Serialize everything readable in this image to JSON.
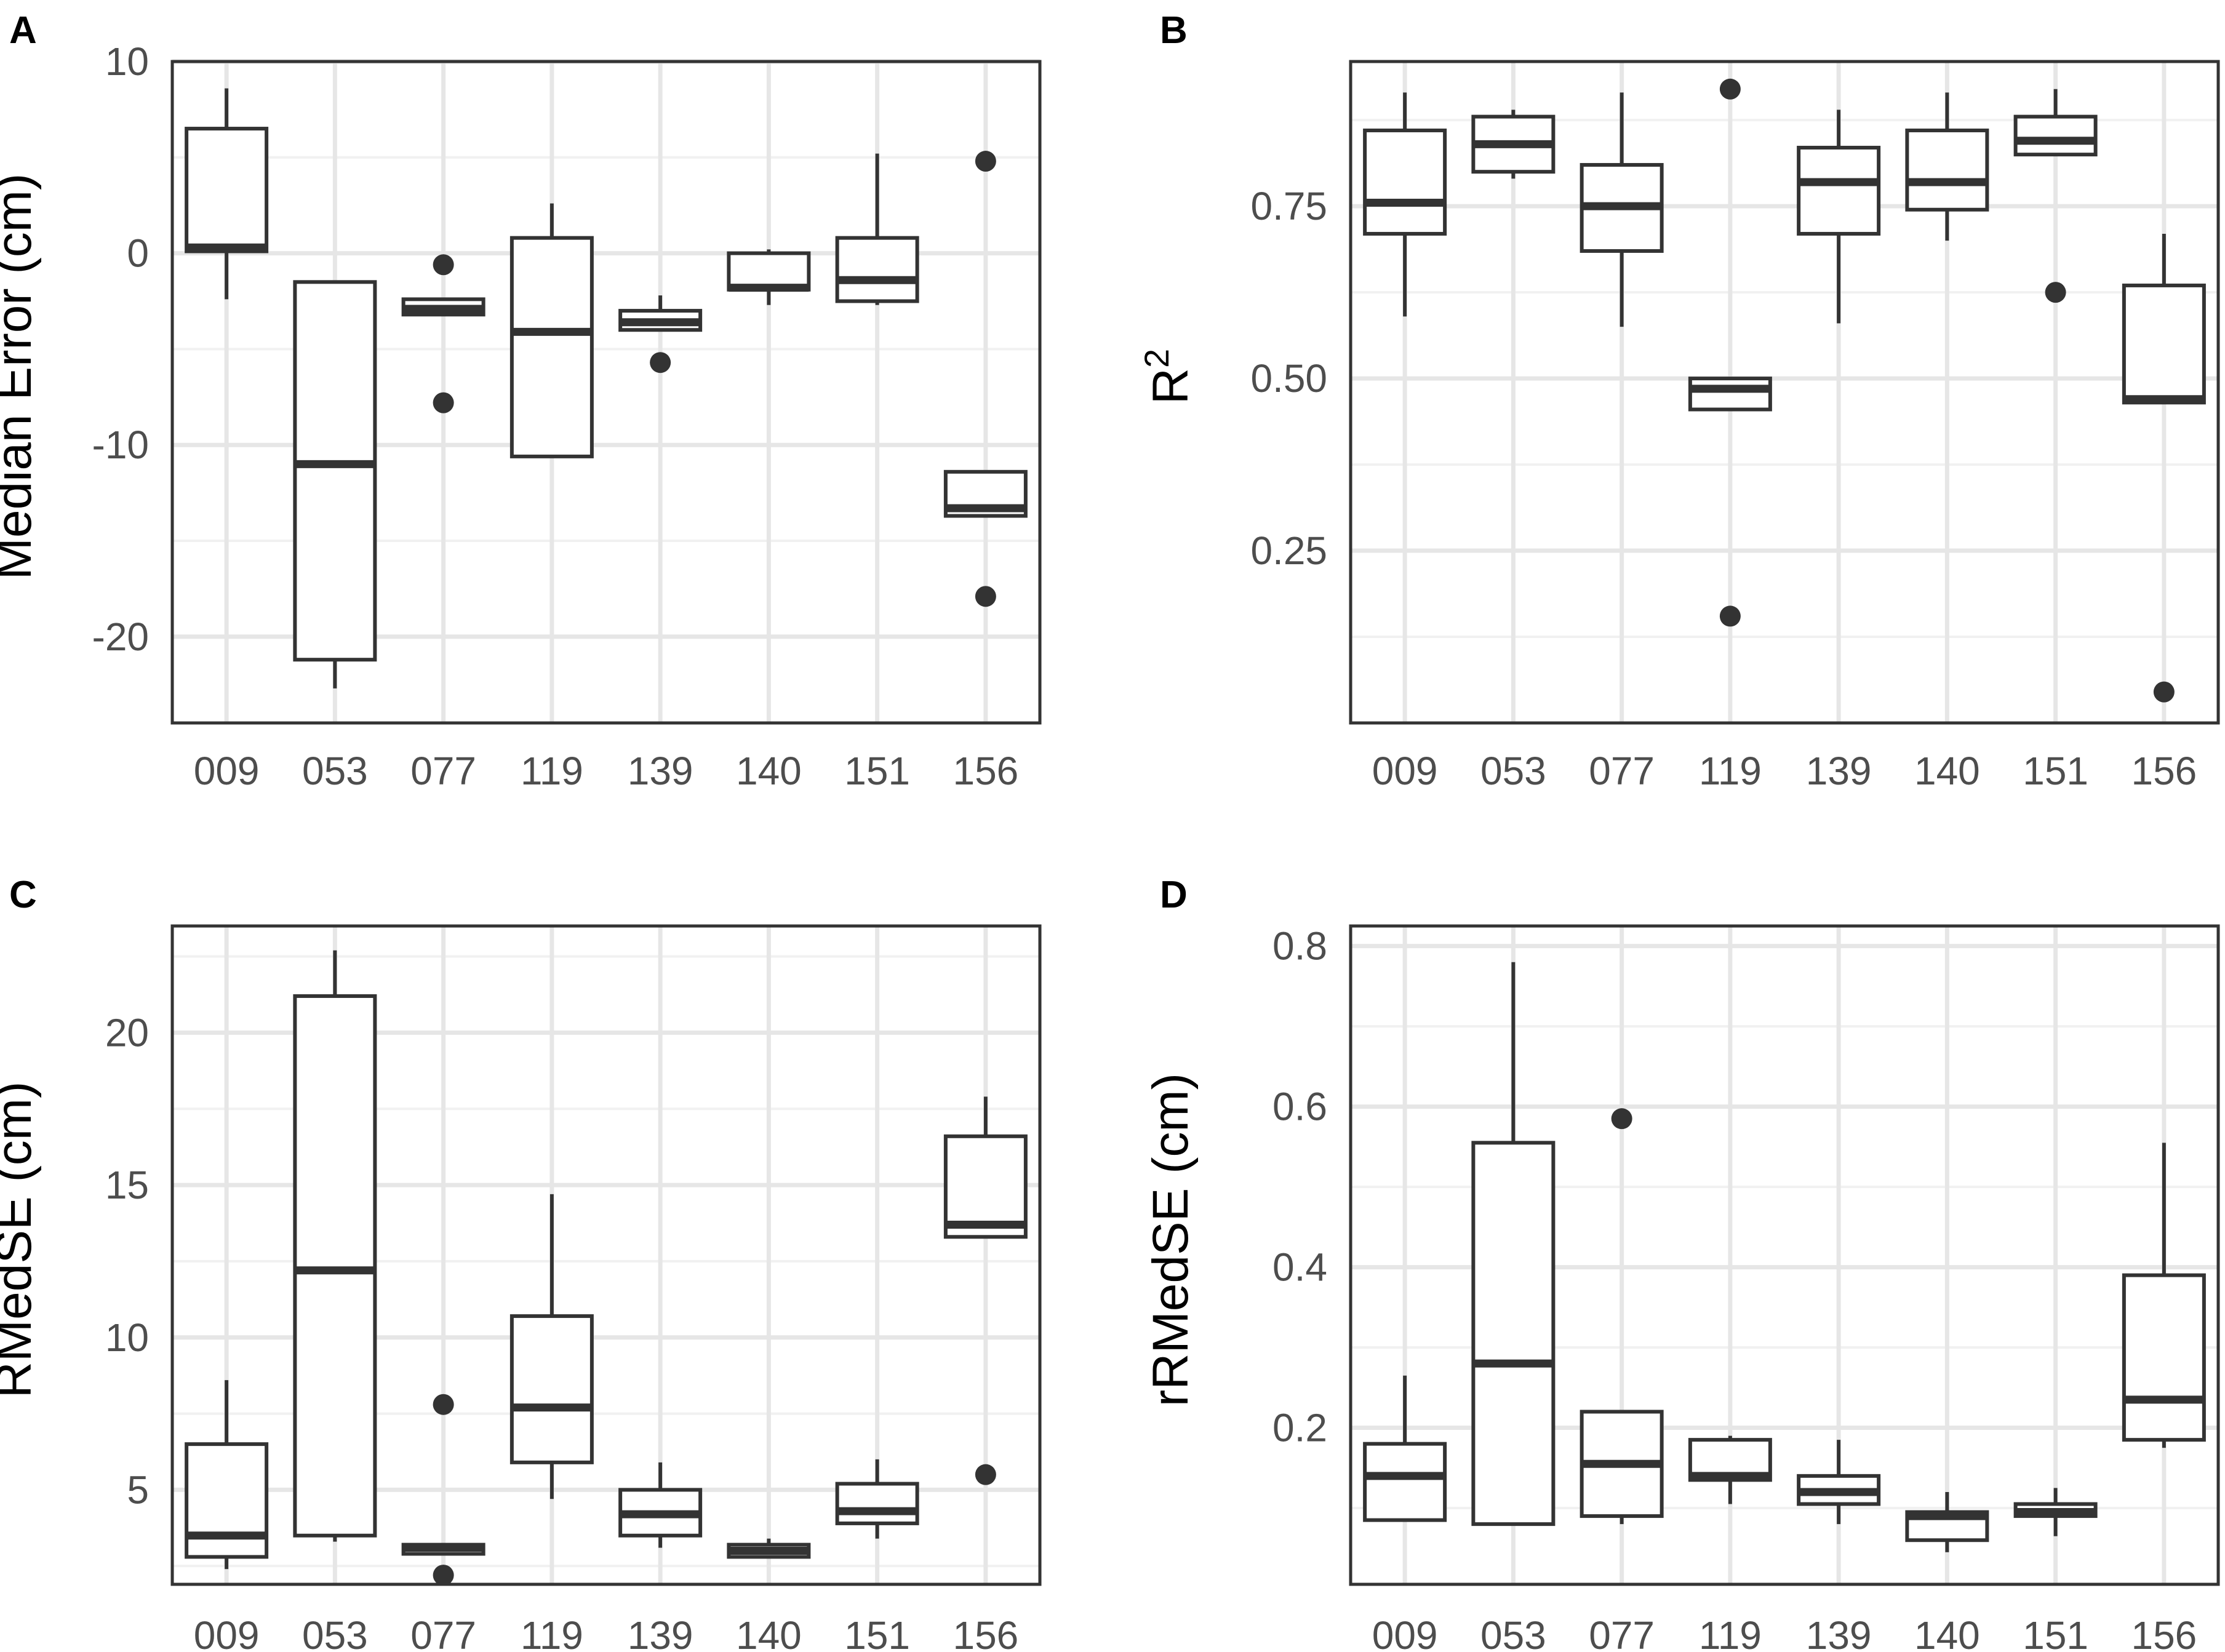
{
  "chart_data": [
    {
      "panel": "A",
      "type": "boxplot",
      "ylabel": "Median Error (cm)",
      "xlabel": "",
      "ylim": [
        -24.5,
        10
      ],
      "yticks": [
        10,
        0,
        -10,
        -20
      ],
      "yticklabels": [
        "10",
        "0",
        "-10",
        "-20"
      ],
      "categories": [
        "009",
        "053",
        "077",
        "119",
        "139",
        "140",
        "151",
        "156"
      ],
      "boxes": [
        {
          "wlo": -2.4,
          "q1": 0.1,
          "median": 0.3,
          "q3": 6.5,
          "whi": 8.6,
          "outliers": []
        },
        {
          "wlo": -22.7,
          "q1": -21.2,
          "median": -11.0,
          "q3": -1.5,
          "whi": -1.5,
          "outliers": []
        },
        {
          "wlo": -3.2,
          "q1": -3.2,
          "median": -2.9,
          "q3": -2.4,
          "whi": -2.4,
          "outliers": [
            -0.6,
            -7.8
          ]
        },
        {
          "wlo": -10.6,
          "q1": -10.6,
          "median": -4.1,
          "q3": 0.8,
          "whi": 2.6,
          "outliers": []
        },
        {
          "wlo": -4.0,
          "q1": -4.0,
          "median": -3.6,
          "q3": -3.0,
          "whi": -2.2,
          "outliers": [
            -5.7
          ]
        },
        {
          "wlo": -2.7,
          "q1": -1.9,
          "median": -1.8,
          "q3": 0.0,
          "whi": 0.2,
          "outliers": []
        },
        {
          "wlo": -2.7,
          "q1": -2.5,
          "median": -1.4,
          "q3": 0.8,
          "whi": 5.2,
          "outliers": []
        },
        {
          "wlo": -13.7,
          "q1": -13.7,
          "median": -13.3,
          "q3": -11.4,
          "whi": -11.4,
          "outliers": [
            4.8,
            -17.9
          ]
        }
      ]
    },
    {
      "panel": "B",
      "type": "boxplot",
      "ylabel": "R",
      "ylabel_sup": "2",
      "xlabel": "",
      "ylim": [
        0.0,
        0.96
      ],
      "yticks": [
        0.75,
        0.5,
        0.25
      ],
      "yticklabels": [
        "0.75",
        "0.50",
        "0.25"
      ],
      "categories": [
        "009",
        "053",
        "077",
        "119",
        "139",
        "140",
        "151",
        "156"
      ],
      "boxes": [
        {
          "wlo": 0.59,
          "q1": 0.71,
          "median": 0.755,
          "q3": 0.86,
          "whi": 0.915,
          "outliers": []
        },
        {
          "wlo": 0.79,
          "q1": 0.8,
          "median": 0.84,
          "q3": 0.88,
          "whi": 0.89,
          "outliers": []
        },
        {
          "wlo": 0.575,
          "q1": 0.685,
          "median": 0.75,
          "q3": 0.81,
          "whi": 0.915,
          "outliers": []
        },
        {
          "wlo": 0.455,
          "q1": 0.455,
          "median": 0.485,
          "q3": 0.5,
          "whi": 0.5,
          "outliers": [
            0.92,
            0.155
          ]
        },
        {
          "wlo": 0.58,
          "q1": 0.71,
          "median": 0.785,
          "q3": 0.835,
          "whi": 0.89,
          "outliers": []
        },
        {
          "wlo": 0.7,
          "q1": 0.745,
          "median": 0.785,
          "q3": 0.86,
          "whi": 0.915,
          "outliers": []
        },
        {
          "wlo": 0.825,
          "q1": 0.825,
          "median": 0.845,
          "q3": 0.88,
          "whi": 0.92,
          "outliers": [
            0.625
          ]
        },
        {
          "wlo": 0.465,
          "q1": 0.465,
          "median": 0.47,
          "q3": 0.635,
          "whi": 0.71,
          "outliers": [
            0.045
          ]
        }
      ]
    },
    {
      "panel": "C",
      "type": "boxplot",
      "ylabel": "RMedSE (cm)",
      "xlabel": "",
      "ylim": [
        1.9,
        23.5
      ],
      "yticks": [
        20,
        15,
        10,
        5
      ],
      "yticklabels": [
        "20",
        "15",
        "10",
        "5"
      ],
      "categories": [
        "009",
        "053",
        "077",
        "119",
        "139",
        "140",
        "151",
        "156"
      ],
      "boxes": [
        {
          "wlo": 2.4,
          "q1": 2.8,
          "median": 3.5,
          "q3": 6.5,
          "whi": 8.6,
          "outliers": []
        },
        {
          "wlo": 3.3,
          "q1": 3.5,
          "median": 12.2,
          "q3": 21.2,
          "whi": 22.7,
          "outliers": []
        },
        {
          "wlo": 2.9,
          "q1": 2.9,
          "median": 3.1,
          "q3": 3.2,
          "whi": 3.2,
          "outliers": [
            7.8,
            2.2
          ]
        },
        {
          "wlo": 4.7,
          "q1": 5.9,
          "median": 7.7,
          "q3": 10.7,
          "whi": 14.7,
          "outliers": []
        },
        {
          "wlo": 3.1,
          "q1": 3.5,
          "median": 4.2,
          "q3": 5.0,
          "whi": 5.9,
          "outliers": []
        },
        {
          "wlo": 2.8,
          "q1": 2.8,
          "median": 3.0,
          "q3": 3.2,
          "whi": 3.4,
          "outliers": []
        },
        {
          "wlo": 3.4,
          "q1": 3.9,
          "median": 4.3,
          "q3": 5.2,
          "whi": 6.0,
          "outliers": []
        },
        {
          "wlo": 13.3,
          "q1": 13.3,
          "median": 13.7,
          "q3": 16.6,
          "whi": 17.9,
          "outliers": [
            5.5
          ]
        }
      ]
    },
    {
      "panel": "D",
      "type": "boxplot",
      "ylabel": "rRMedSE (cm)",
      "xlabel": "",
      "ylim": [
        0.005,
        0.825
      ],
      "yticks": [
        0.8,
        0.6,
        0.4,
        0.2
      ],
      "yticklabels": [
        "0.8",
        "0.6",
        "0.4",
        "0.2"
      ],
      "categories": [
        "009",
        "053",
        "077",
        "119",
        "139",
        "140",
        "151",
        "156"
      ],
      "boxes": [
        {
          "wlo": 0.085,
          "q1": 0.085,
          "median": 0.14,
          "q3": 0.18,
          "whi": 0.265,
          "outliers": []
        },
        {
          "wlo": 0.08,
          "q1": 0.08,
          "median": 0.28,
          "q3": 0.555,
          "whi": 0.78,
          "outliers": []
        },
        {
          "wlo": 0.08,
          "q1": 0.09,
          "median": 0.155,
          "q3": 0.22,
          "whi": 0.22,
          "outliers": [
            0.585
          ]
        },
        {
          "wlo": 0.105,
          "q1": 0.135,
          "median": 0.14,
          "q3": 0.185,
          "whi": 0.19,
          "outliers": []
        },
        {
          "wlo": 0.08,
          "q1": 0.105,
          "median": 0.12,
          "q3": 0.14,
          "whi": 0.185,
          "outliers": []
        },
        {
          "wlo": 0.045,
          "q1": 0.06,
          "median": 0.09,
          "q3": 0.095,
          "whi": 0.12,
          "outliers": []
        },
        {
          "wlo": 0.065,
          "q1": 0.09,
          "median": 0.095,
          "q3": 0.105,
          "whi": 0.125,
          "outliers": []
        },
        {
          "wlo": 0.175,
          "q1": 0.185,
          "median": 0.235,
          "q3": 0.39,
          "whi": 0.555,
          "outliers": []
        }
      ]
    }
  ]
}
